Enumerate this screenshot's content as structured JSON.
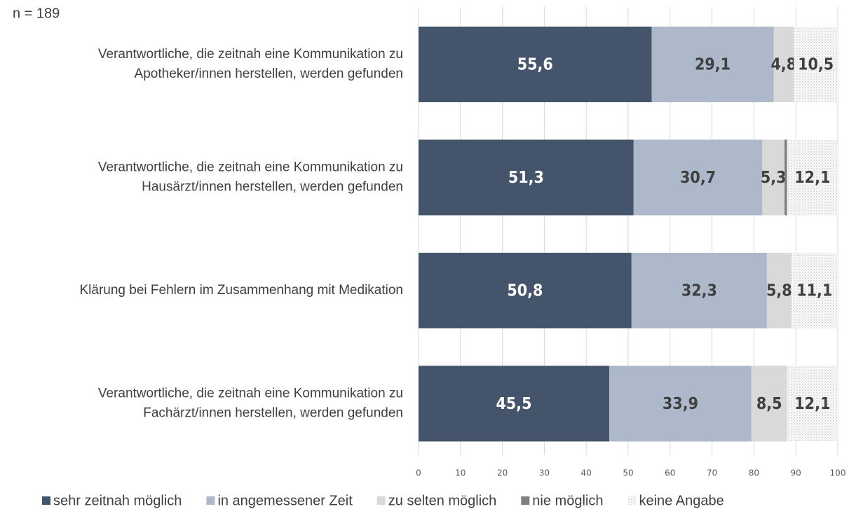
{
  "chart_data": {
    "type": "stacked_barh",
    "subtitle": "n = 189",
    "categories": [
      [
        "Verantwortliche, die zeitnah eine Kommunikation zu",
        "Apotheker/innen herstellen, werden gefunden"
      ],
      [
        "Verantwortliche, die zeitnah eine Kommunikation zu",
        "Hausärzt/innen herstellen, werden gefunden"
      ],
      [
        "Klärung bei Fehlern im Zusammenhang mit Medikation"
      ],
      [
        "Verantwortliche, die zeitnah eine Kommunikation zu",
        "Fachärzt/innen herstellen, werden gefunden"
      ]
    ],
    "series": [
      {
        "name": "sehr zeitnah möglich",
        "color": "#44546a",
        "label_color": "#ffffff",
        "values": [
          55.6,
          51.3,
          50.8,
          45.5
        ],
        "value_labels": [
          "55,6",
          "51,3",
          "50,8",
          "45,5"
        ]
      },
      {
        "name": "in angemessener Zeit",
        "color": "#adb9ca",
        "label_color": "#404040",
        "values": [
          29.1,
          30.7,
          32.3,
          33.9
        ],
        "value_labels": [
          "29,1",
          "30,7",
          "32,3",
          "33,9"
        ]
      },
      {
        "name": "zu selten möglich",
        "color": "#d9d9d9",
        "label_color": "#404040",
        "values": [
          4.8,
          5.3,
          5.8,
          8.5
        ],
        "value_labels": [
          "4,8",
          "5,3",
          "5,8",
          "8,5"
        ]
      },
      {
        "name": "nie möglich",
        "color": "#7f7f7f",
        "values": [
          0,
          0.6,
          0,
          0
        ]
      },
      {
        "name": "keine Angabe",
        "color": "#ffffff",
        "pattern": "dots",
        "label_color": "#404040",
        "values": [
          10.5,
          12.1,
          11.1,
          12.1
        ],
        "value_labels": [
          "10,5",
          "12,1",
          "11,1",
          "12,1"
        ]
      }
    ],
    "xlim": [
      0,
      100
    ],
    "xticks": [
      0,
      10,
      20,
      30,
      40,
      50,
      60,
      70,
      80,
      90,
      100
    ],
    "grid": true,
    "legend": "bottom"
  }
}
